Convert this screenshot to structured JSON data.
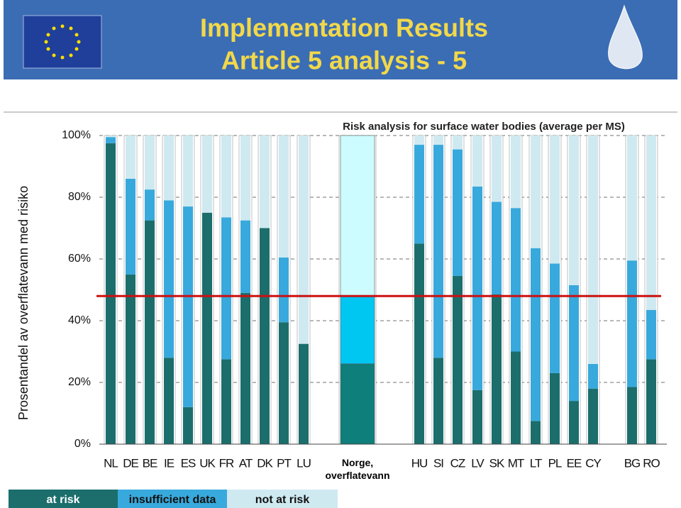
{
  "header": {
    "title_line_1": "Implementation Results",
    "title_line_2": "Article 5 analysis - 5"
  },
  "chart_data": {
    "type": "stacked-bar",
    "title": "Risk analysis for surface water bodies  (average per MS)",
    "y_label": "Prosentandel av overflatevann med risiko",
    "categories": [
      "NL",
      "DE",
      "BE",
      "IE",
      "ES",
      "UK",
      "FR",
      "AT",
      "DK",
      "PT",
      "LU",
      "Norge, overflatevann",
      "HU",
      "SI",
      "CZ",
      "LV",
      "SK",
      "MT",
      "LT",
      "PL",
      "EE",
      "CY",
      "BG",
      "RO"
    ],
    "series": [
      {
        "name": "at risk",
        "color": "#1b6e6c",
        "values": [
          97.5,
          55,
          72.5,
          28,
          12,
          75,
          27.5,
          49,
          70,
          39.5,
          32.5,
          26,
          65,
          28,
          54.5,
          17.5,
          48.5,
          30,
          7.5,
          23,
          14,
          18,
          18.5,
          27.5
        ]
      },
      {
        "name": "insufficient data",
        "color": "#38a9dc",
        "values": [
          2,
          31,
          10,
          51,
          65,
          0,
          46,
          23.5,
          0,
          21,
          0,
          22,
          32,
          69,
          41,
          66,
          30,
          46.5,
          56,
          35.5,
          37.5,
          8,
          41,
          16
        ]
      },
      {
        "name": "not at risk",
        "color": "#cfe9f1",
        "values": [
          0.5,
          14,
          17.5,
          21,
          23,
          25,
          26.5,
          27.5,
          30,
          39.5,
          67.5,
          52,
          3,
          3,
          4.5,
          16.5,
          21.5,
          23.5,
          36.5,
          41.5,
          48.5,
          74,
          40.5,
          56.5
        ]
      }
    ],
    "highlight_category": "Norge, overflatevann",
    "highlight_colors": [
      "#0e7f7a",
      "#00c6f2",
      "#ccfcff"
    ],
    "reference_line": 48,
    "reference_color": "#cc1111",
    "ylim": [
      0,
      100
    ],
    "yticks": [
      {
        "value": 0,
        "label": "0%"
      },
      {
        "value": 20,
        "label": "20%"
      },
      {
        "value": 40,
        "label": "40%"
      },
      {
        "value": 60,
        "label": "60%"
      },
      {
        "value": 80,
        "label": "80%"
      },
      {
        "value": 100,
        "label": "100%"
      }
    ],
    "grid": true
  }
}
